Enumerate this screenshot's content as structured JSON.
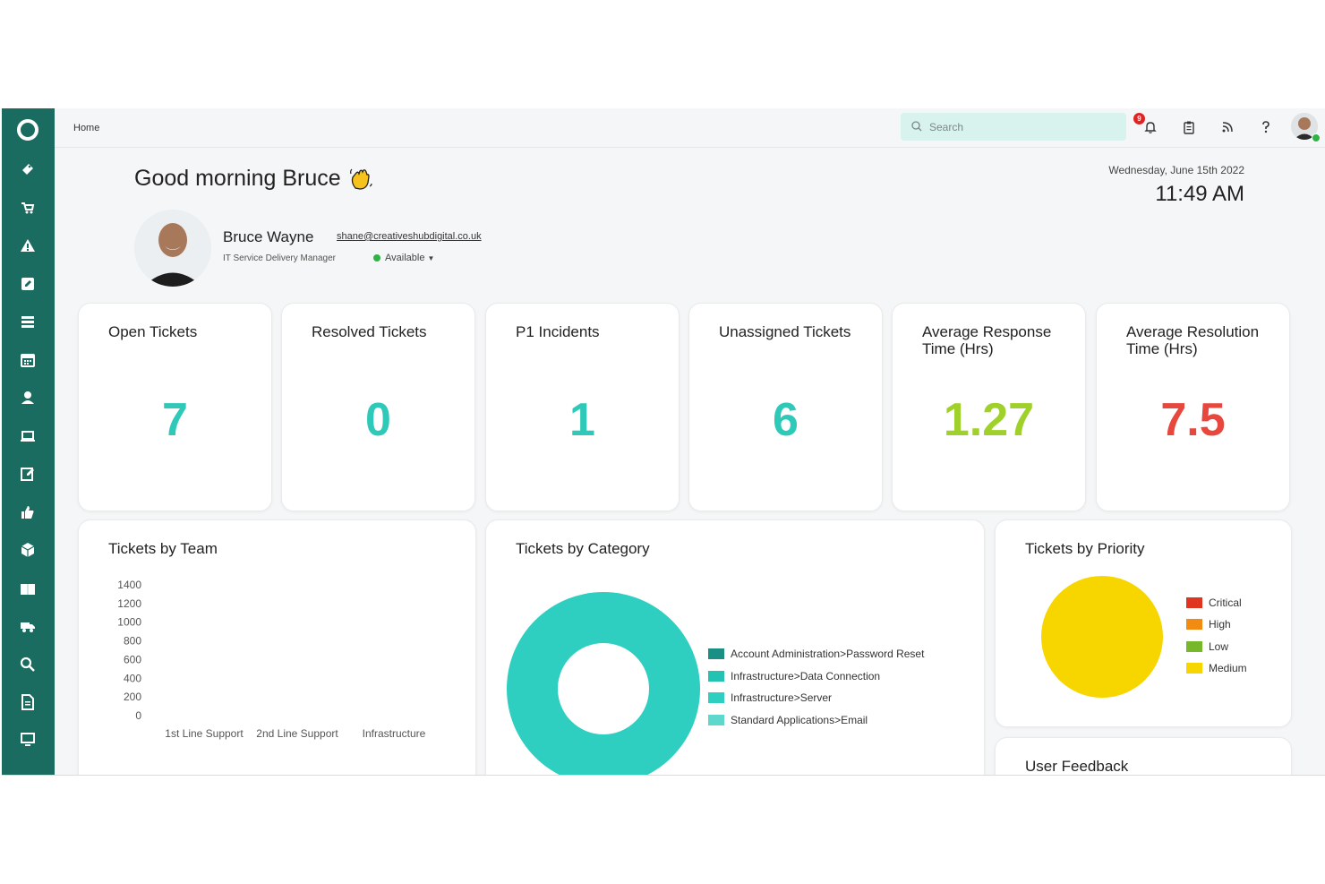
{
  "header": {
    "breadcrumb": "Home",
    "search_placeholder": "Search",
    "notification_count": "9",
    "icons": [
      "bell-icon",
      "clipboard-icon",
      "rss-icon",
      "help-icon"
    ]
  },
  "sidebar": {
    "items": [
      "ticket-icon",
      "cart-icon",
      "warning-icon",
      "edit-icon",
      "list-icon",
      "calendar-icon",
      "user-icon",
      "laptop-icon",
      "note-icon",
      "thumbs-up-icon",
      "package-icon",
      "book-icon",
      "truck-icon",
      "search-icon",
      "document-icon",
      "monitor-icon"
    ]
  },
  "greeting": {
    "text": "Good morning Bruce"
  },
  "datetime": {
    "date": "Wednesday, June 15th 2022",
    "time": "11:49 AM"
  },
  "user": {
    "name": "Bruce Wayne",
    "email": "shane@creativeshubdigital.co.uk",
    "role": "IT Service Delivery Manager",
    "status": "Available"
  },
  "stats": [
    {
      "title": "Open Tickets",
      "value": "7",
      "color": "#2ec9b8"
    },
    {
      "title": "Resolved Tickets",
      "value": "0",
      "color": "#2ec9b8"
    },
    {
      "title": "P1 Incidents",
      "value": "1",
      "color": "#2ec9b8"
    },
    {
      "title": "Unassigned Tickets",
      "value": "6",
      "color": "#2ec9b8"
    },
    {
      "title": "Average Response Time (Hrs)",
      "value": "1.27",
      "color": "#9fd12a"
    },
    {
      "title": "Average Resolution Time (Hrs)",
      "value": "7.5",
      "color": "#e8473e"
    }
  ],
  "panels": {
    "team": "Tickets by Team",
    "category": "Tickets by Category",
    "priority": "Tickets by Priority",
    "feedback": "User Feedback"
  },
  "chart_data": [
    {
      "type": "bar",
      "title": "Tickets by Team",
      "categories": [
        "1st Line Support",
        "2nd Line Support",
        "Infrastructure"
      ],
      "values": [
        0,
        0,
        0
      ],
      "yticks": [
        "1400",
        "1200",
        "1000",
        "800",
        "600",
        "400",
        "200",
        "0"
      ],
      "ylim": [
        0,
        1400
      ],
      "grid": false
    },
    {
      "type": "pie",
      "donut": true,
      "title": "Tickets by Category",
      "legend": "right",
      "labels": [
        "Account Administration>Password Reset",
        "Infrastructure>Data Connection",
        "Infrastructure>Server",
        "Standard Applications>Email"
      ],
      "colors": [
        "#1a8f83",
        "#23c2b3",
        "#2ecfc0",
        "#5ed8cc"
      ],
      "values": [
        0,
        0,
        1,
        0
      ]
    },
    {
      "type": "pie",
      "title": "Tickets by Priority",
      "legend": "right",
      "labels": [
        "Critical",
        "High",
        "Low",
        "Medium"
      ],
      "colors": [
        "#e0341e",
        "#f28b12",
        "#76b82a",
        "#f7d600"
      ],
      "values": [
        0,
        0,
        0,
        1
      ]
    }
  ]
}
